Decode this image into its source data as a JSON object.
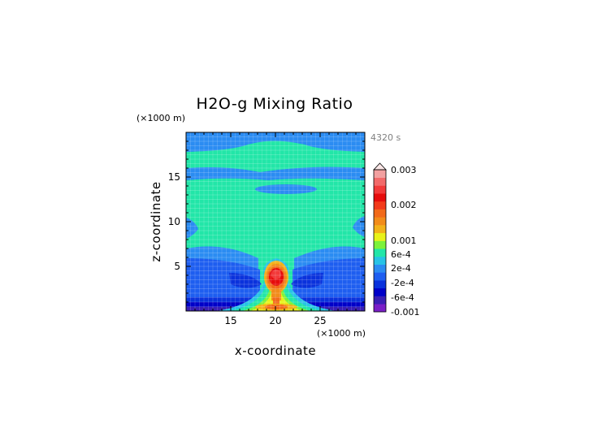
{
  "chart_data": {
    "type": "heatmap",
    "title": "H2O-g Mixing Ratio",
    "xlabel": "x-coordinate",
    "ylabel": "z-coordinate",
    "x_unit": "(×1000 m)",
    "y_unit": "(×1000 m)",
    "time_label": "4320 s",
    "xlim": [
      10,
      30
    ],
    "ylim": [
      0,
      20
    ],
    "x_ticks": [
      15,
      20,
      25
    ],
    "y_ticks": [
      5,
      10,
      15
    ],
    "grid": true,
    "colorbar": {
      "placement": "right",
      "labels": [
        "0.003",
        "0.002",
        "0.001",
        "6e-4",
        "2e-4",
        "-2e-4",
        "-6e-4",
        "-0.001"
      ],
      "colors": [
        "#7a1fc7",
        "#3a1fb5",
        "#0000c8",
        "#0a32dc",
        "#1e5ef0",
        "#2b8cf2",
        "#27c3e6",
        "#22e6a8",
        "#7cf23a",
        "#e8f21a",
        "#f2b21a",
        "#f28c1a",
        "#f26a1a",
        "#f23a1a",
        "#e60c0c",
        "#f23a3a",
        "#f26a6a",
        "#f2a0a0"
      ]
    }
  }
}
